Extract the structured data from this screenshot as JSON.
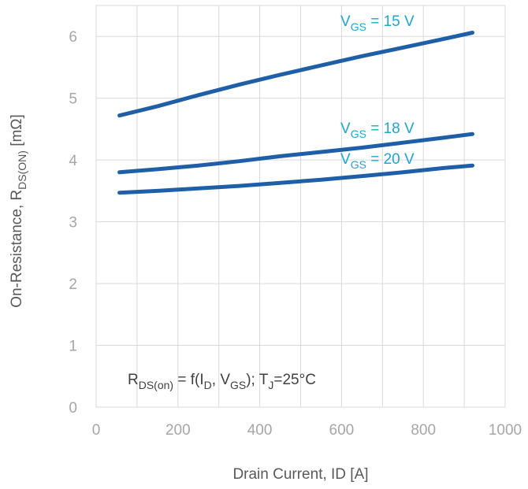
{
  "chart_data": {
    "type": "line",
    "xlabel": "Drain Current, ID [A]",
    "ylabel": {
      "main": "On-Resistance, R",
      "sub": "DS(ON)",
      "unit": " [mΩ]"
    },
    "xlim": [
      0,
      1000
    ],
    "ylim": [
      0,
      6.5
    ],
    "xticks": [
      0,
      200,
      400,
      600,
      800,
      1000
    ],
    "yticks": [
      0,
      1,
      2,
      3,
      4,
      5,
      6
    ],
    "x_minor_step": 100,
    "grid": true,
    "colors": {
      "line": "#1f5fa8",
      "label": "#1ba6d8",
      "grid": "#d9d9d9",
      "tick": "#a6a6a6"
    },
    "series": [
      {
        "name": "VGS = 15 V",
        "label": {
          "main": "V",
          "sub": "GS",
          "rest": " = 15 V"
        },
        "x": [
          57,
          150,
          250,
          350,
          450,
          550,
          650,
          750,
          850,
          920
        ],
        "y": [
          4.72,
          4.87,
          5.05,
          5.22,
          5.38,
          5.53,
          5.68,
          5.82,
          5.96,
          6.06
        ]
      },
      {
        "name": "VGS = 18 V",
        "label": {
          "main": "V",
          "sub": "GS",
          "rest": " = 18 V"
        },
        "x": [
          57,
          150,
          250,
          350,
          450,
          550,
          650,
          750,
          850,
          920
        ],
        "y": [
          3.8,
          3.85,
          3.91,
          3.98,
          4.06,
          4.13,
          4.2,
          4.28,
          4.36,
          4.42
        ]
      },
      {
        "name": "VGS = 20 V",
        "label": {
          "main": "V",
          "sub": "GS",
          "rest": " = 20 V"
        },
        "x": [
          57,
          150,
          250,
          350,
          450,
          550,
          650,
          750,
          850,
          920
        ],
        "y": [
          3.47,
          3.5,
          3.54,
          3.58,
          3.63,
          3.68,
          3.74,
          3.8,
          3.87,
          3.91
        ]
      }
    ],
    "annotation": {
      "parts": [
        {
          "t": "R",
          "s": "n"
        },
        {
          "t": "DS(on)",
          "s": "sub"
        },
        {
          "t": " = f(I",
          "s": "n"
        },
        {
          "t": "D",
          "s": "sub"
        },
        {
          "t": ", V",
          "s": "n"
        },
        {
          "t": "GS",
          "s": "sub"
        },
        {
          "t": "); T",
          "s": "n"
        },
        {
          "t": "J",
          "s": "sub"
        },
        {
          "t": "=25°C",
          "s": "n"
        }
      ]
    }
  }
}
